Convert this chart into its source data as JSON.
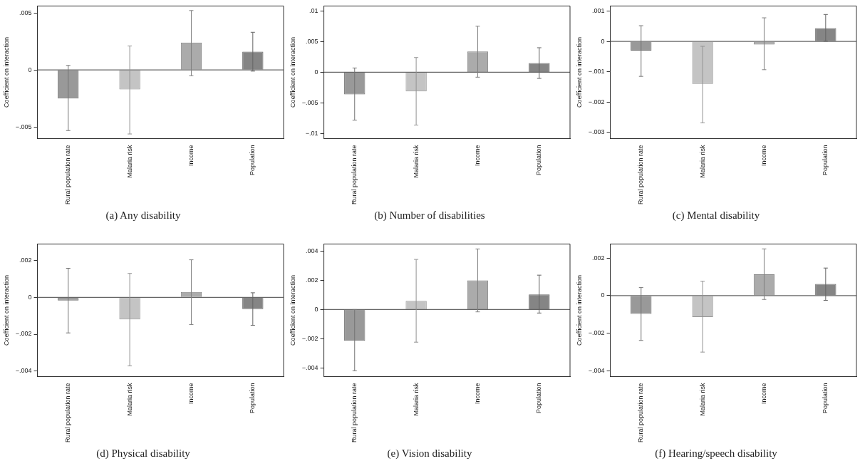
{
  "chart_data": [
    {
      "type": "bar",
      "title": "(a) Any disability",
      "ylabel": "Coefficient on interaction",
      "categories": [
        "Rural population rate",
        "Malaria risk",
        "Income",
        "Population"
      ],
      "values": [
        -0.0025,
        -0.0017,
        0.0024,
        0.0016
      ],
      "colors": [
        "#999999",
        "#c4c4c4",
        "#ababab",
        "#858585"
      ],
      "errors": [
        [
          -0.0053,
          0.0004
        ],
        [
          -0.0056,
          0.0021
        ],
        [
          -0.0005,
          0.0052
        ],
        [
          -0.0001,
          0.0033
        ]
      ],
      "ylim": [
        -0.006,
        0.0056
      ],
      "yticks": [
        {
          "value": -0.005,
          "label": "−.005"
        },
        {
          "value": 0,
          "label": "0"
        },
        {
          "value": 0.005,
          "label": ".005"
        }
      ],
      "ref_lines": [
        {
          "axis": "y",
          "value": 0
        }
      ],
      "grid": false,
      "legend": false
    },
    {
      "type": "bar",
      "title": "(b) Number of disabilities",
      "ylabel": "Coefficient on interaction",
      "categories": [
        "Rural population rate",
        "Malaria risk",
        "Income",
        "Population"
      ],
      "values": [
        -0.0036,
        -0.0031,
        0.0034,
        0.0015
      ],
      "colors": [
        "#999999",
        "#c4c4c4",
        "#ababab",
        "#858585"
      ],
      "errors": [
        [
          -0.0078,
          0.0007
        ],
        [
          -0.0086,
          0.0024
        ],
        [
          -0.0008,
          0.0075
        ],
        [
          -0.001,
          0.004
        ]
      ],
      "ylim": [
        -0.0108,
        0.0108
      ],
      "yticks": [
        {
          "value": -0.01,
          "label": "−.01"
        },
        {
          "value": -0.005,
          "label": "−.005"
        },
        {
          "value": 0,
          "label": "0"
        },
        {
          "value": 0.005,
          "label": ".005"
        },
        {
          "value": 0.01,
          "label": ".01"
        }
      ],
      "ref_lines": [
        {
          "axis": "y",
          "value": 0
        }
      ],
      "grid": false,
      "legend": false
    },
    {
      "type": "bar",
      "title": "(c) Mental disability",
      "ylabel": "Coefficient on interaction",
      "categories": [
        "Rural population rate",
        "Malaria risk",
        "Income",
        "Population"
      ],
      "values": [
        -0.0003,
        -0.0014,
        -0.0001,
        0.00044
      ],
      "colors": [
        "#999999",
        "#c4c4c4",
        "#ababab",
        "#858585"
      ],
      "errors": [
        [
          -0.00115,
          0.00052
        ],
        [
          -0.00268,
          -0.00016
        ],
        [
          -0.00093,
          0.00078
        ],
        [
          1e-05,
          0.00089
        ]
      ],
      "ylim": [
        -0.0032,
        0.00117
      ],
      "yticks": [
        {
          "value": -0.003,
          "label": "−.003"
        },
        {
          "value": -0.002,
          "label": "−.002"
        },
        {
          "value": -0.001,
          "label": "−.001"
        },
        {
          "value": 0,
          "label": "0"
        },
        {
          "value": 0.001,
          "label": ".001"
        }
      ],
      "ref_lines": [
        {
          "axis": "y",
          "value": 0
        }
      ],
      "grid": false,
      "legend": false
    },
    {
      "type": "bar",
      "title": "(d) Physical disability",
      "ylabel": "Coefficient on interaction",
      "categories": [
        "Rural population rate",
        "Malaria risk",
        "Income",
        "Population"
      ],
      "values": [
        -0.00017,
        -0.0012,
        0.00029,
        -0.00064
      ],
      "colors": [
        "#999999",
        "#c4c4c4",
        "#ababab",
        "#858585"
      ],
      "errors": [
        [
          -0.00193,
          0.00158
        ],
        [
          -0.00372,
          0.0013
        ],
        [
          -0.00148,
          0.00204
        ],
        [
          -0.00152,
          0.00025
        ]
      ],
      "ylim": [
        -0.0043,
        0.0029
      ],
      "yticks": [
        {
          "value": -0.004,
          "label": "−.004"
        },
        {
          "value": -0.002,
          "label": "−.002"
        },
        {
          "value": 0,
          "label": "0"
        },
        {
          "value": 0.002,
          "label": ".002"
        }
      ],
      "ref_lines": [
        {
          "axis": "y",
          "value": 0
        }
      ],
      "grid": false,
      "legend": false
    },
    {
      "type": "bar",
      "title": "(e) Vision disability",
      "ylabel": "Coefficient on interaction",
      "categories": [
        "Rural population rate",
        "Malaria risk",
        "Income",
        "Population"
      ],
      "values": [
        -0.00214,
        0.0006,
        0.002,
        0.00104
      ],
      "colors": [
        "#999999",
        "#c4c4c4",
        "#ababab",
        "#858585"
      ],
      "errors": [
        [
          -0.0042,
          0
        ],
        [
          -0.00224,
          0.00344
        ],
        [
          -0.00016,
          0.00416
        ],
        [
          -0.00024,
          0.00236
        ]
      ],
      "ylim": [
        -0.0046,
        0.0045
      ],
      "yticks": [
        {
          "value": -0.004,
          "label": "−.004"
        },
        {
          "value": -0.002,
          "label": "−.002"
        },
        {
          "value": 0,
          "label": "0"
        },
        {
          "value": 0.002,
          "label": ".002"
        },
        {
          "value": 0.004,
          "label": ".004"
        }
      ],
      "ref_lines": [
        {
          "axis": "y",
          "value": 0
        }
      ],
      "grid": false,
      "legend": false
    },
    {
      "type": "bar",
      "title": "(f) Hearing/speech disability",
      "ylabel": "Coefficient on interaction",
      "categories": [
        "Rural population rate",
        "Malaria risk",
        "Income",
        "Population"
      ],
      "values": [
        -0.00097,
        -0.00114,
        0.00114,
        0.00062
      ],
      "colors": [
        "#999999",
        "#c4c4c4",
        "#ababab",
        "#858585"
      ],
      "errors": [
        [
          -0.00238,
          0.00043
        ],
        [
          -0.003,
          0.00077
        ],
        [
          -0.0002,
          0.00249
        ],
        [
          -0.00025,
          0.00147
        ]
      ],
      "ylim": [
        -0.0043,
        0.00275
      ],
      "yticks": [
        {
          "value": -0.004,
          "label": "−.004"
        },
        {
          "value": -0.002,
          "label": "−.002"
        },
        {
          "value": 0,
          "label": "0"
        },
        {
          "value": 0.002,
          "label": ".002"
        }
      ],
      "ref_lines": [
        {
          "axis": "y",
          "value": 0
        }
      ],
      "grid": false,
      "legend": false
    }
  ]
}
